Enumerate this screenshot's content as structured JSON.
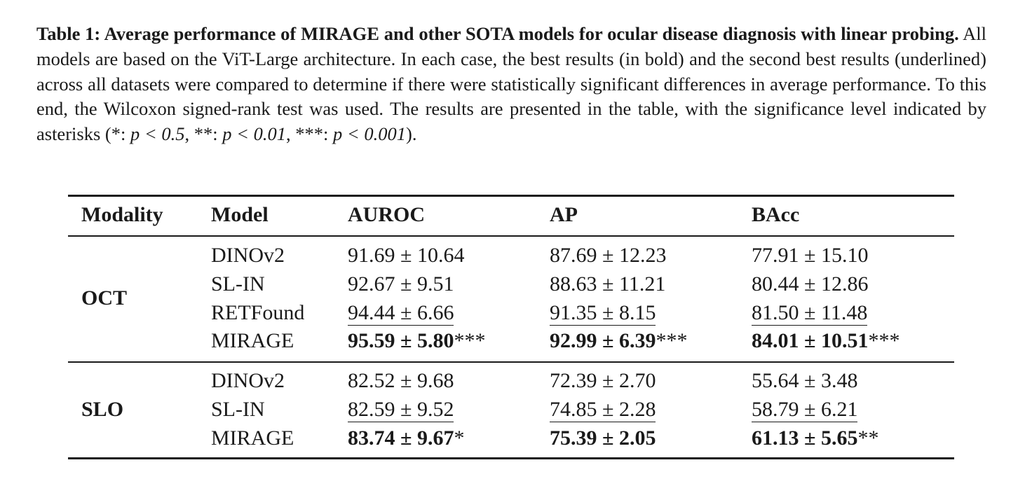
{
  "caption": {
    "bold_prefix": "Table 1: Average performance of MIRAGE and other SOTA models for ocular disease diagnosis with linear probing.",
    "body_1": " All models are based on the ViT-Large architecture. In each case, the best results (in bold) and the second best results (underlined) across all datasets were compared to determine if there were statistically significant differences in average performance. To this end, the Wilcoxon signed-rank test was used. The results are presented in the table, with the significance level indicated by asterisks (*: ",
    "p1": "p < 0.5",
    "sep1": ", **: ",
    "p2": "p < 0.01",
    "sep2": ", ***: ",
    "p3": "p < 0.001",
    "tail": ")."
  },
  "table": {
    "headers": [
      "Modality",
      "Model",
      "AUROC",
      "AP",
      "BAcc"
    ],
    "groups": [
      {
        "modality": "OCT",
        "rows": [
          {
            "model": "DINOv2",
            "auroc": "91.69 ± 10.64",
            "auroc_sig": "",
            "ap": "87.69 ± 12.23",
            "ap_sig": "",
            "bacc": "77.91 ± 15.10",
            "bacc_sig": ""
          },
          {
            "model": "SL-IN",
            "auroc": "92.67 ± 9.51",
            "auroc_sig": "",
            "ap": "88.63 ± 11.21",
            "ap_sig": "",
            "bacc": "80.44 ± 12.86",
            "bacc_sig": ""
          },
          {
            "model": "RETFound",
            "auroc": "94.44 ± 6.66",
            "auroc_sig": "",
            "ap": "91.35 ± 8.15",
            "ap_sig": "",
            "bacc": "81.50 ± 11.48",
            "bacc_sig": ""
          },
          {
            "model": "MIRAGE",
            "auroc": "95.59 ± 5.80",
            "auroc_sig": "***",
            "ap": "92.99 ± 6.39",
            "ap_sig": "***",
            "bacc": "84.01 ± 10.51",
            "bacc_sig": "***"
          }
        ]
      },
      {
        "modality": "SLO",
        "rows": [
          {
            "model": "DINOv2",
            "auroc": "82.52 ± 9.68",
            "auroc_sig": "",
            "ap": "72.39 ± 2.70",
            "ap_sig": "",
            "bacc": "55.64 ± 3.48",
            "bacc_sig": ""
          },
          {
            "model": "SL-IN",
            "auroc": "82.59 ± 9.52",
            "auroc_sig": "",
            "ap": "74.85 ± 2.28",
            "ap_sig": "",
            "bacc": "58.79 ± 6.21",
            "bacc_sig": ""
          },
          {
            "model": "MIRAGE",
            "auroc": "83.74 ± 9.67",
            "auroc_sig": "*",
            "ap": "75.39 ± 2.05",
            "ap_sig": "",
            "bacc": "61.13 ± 5.65",
            "bacc_sig": "**"
          }
        ]
      }
    ]
  }
}
